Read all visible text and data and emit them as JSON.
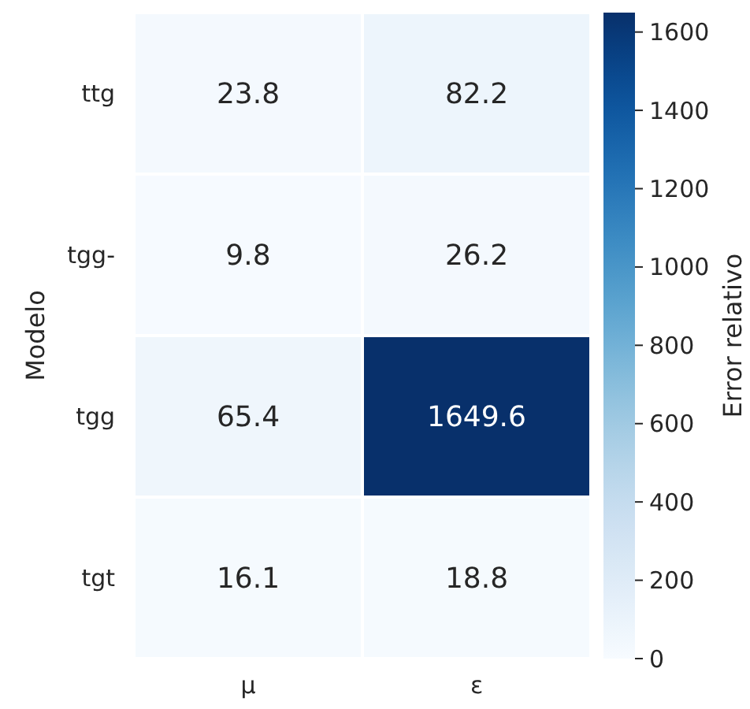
{
  "chart_data": {
    "type": "heatmap",
    "categories": [
      "μ",
      "ε"
    ],
    "y_categories": [
      "ttg",
      "tgg-",
      "tgg",
      "tgt"
    ],
    "cells": [
      [
        23.8,
        82.2
      ],
      [
        9.8,
        26.2
      ],
      [
        65.4,
        1649.6
      ],
      [
        16.1,
        18.8
      ]
    ],
    "data_labels": true,
    "ylabel": "Modelo",
    "clabel": "Error relativo",
    "clim": [
      0,
      1649.6
    ],
    "cticks": [
      0,
      200,
      400,
      600,
      800,
      1000,
      1200,
      1400,
      1600
    ]
  }
}
